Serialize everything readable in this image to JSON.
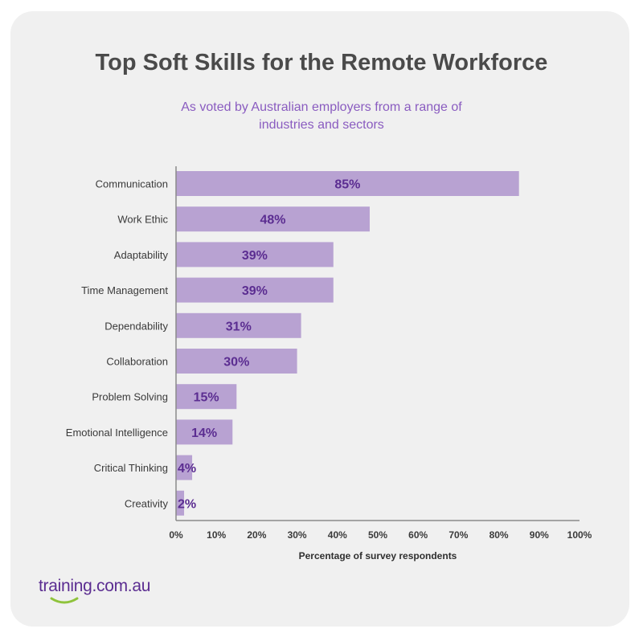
{
  "header": {
    "title": "Top Soft Skills for the Remote Workforce",
    "subtitle": "As voted by Australian employers from a range of industries and sectors"
  },
  "brand": {
    "logo_text": "training.com.au",
    "primary_color": "#5b2d91",
    "bar_color": "#b8a2d2",
    "accent_color": "#8fc33c"
  },
  "chart_data": {
    "type": "bar",
    "orientation": "horizontal",
    "categories": [
      "Communication",
      "Work Ethic",
      "Adaptability",
      "Time Management",
      "Dependability",
      "Collaboration",
      "Problem Solving",
      "Emotional Intelligence",
      "Critical Thinking",
      "Creativity"
    ],
    "values": [
      85,
      48,
      39,
      39,
      31,
      30,
      15,
      14,
      4,
      2
    ],
    "value_labels": [
      "85%",
      "48%",
      "39%",
      "39%",
      "31%",
      "30%",
      "15%",
      "14%",
      "4%",
      "2%"
    ],
    "xlabel": "Percentage of survey respondents",
    "ylabel": "",
    "xlim": [
      0,
      100
    ],
    "x_ticks": [
      "0%",
      "10%",
      "20%",
      "30%",
      "40%",
      "50%",
      "60%",
      "70%",
      "80%",
      "90%",
      "100%"
    ],
    "grid": false,
    "legend": "none"
  }
}
